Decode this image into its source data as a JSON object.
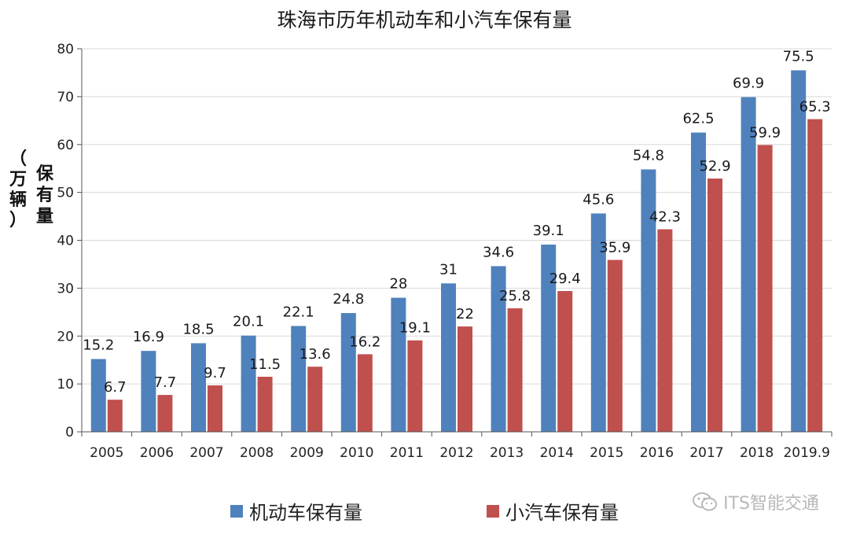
{
  "chart_data": {
    "type": "bar",
    "title": "珠海市历年机动车和小汽车保有量",
    "ylabel": "保有量",
    "yunit": "（万辆）",
    "categories": [
      "2005",
      "2006",
      "2007",
      "2008",
      "2009",
      "2010",
      "2011",
      "2012",
      "2013",
      "2014",
      "2015",
      "2016",
      "2017",
      "2018",
      "2019.9"
    ],
    "series": [
      {
        "name": "机动车保有量",
        "color": "#4f81bd",
        "values": [
          15.2,
          16.9,
          18.5,
          20.1,
          22.1,
          24.8,
          28,
          31,
          34.6,
          39.1,
          45.6,
          54.8,
          62.5,
          69.9,
          75.5
        ]
      },
      {
        "name": "小汽车保有量",
        "color": "#c0504d",
        "values": [
          6.7,
          7.7,
          9.7,
          11.5,
          13.6,
          16.2,
          19.1,
          22,
          25.8,
          29.4,
          35.9,
          42.3,
          52.9,
          59.9,
          65.3
        ]
      }
    ],
    "ylim": [
      0,
      80
    ],
    "yticks": [
      0,
      10,
      20,
      30,
      40,
      50,
      60,
      70,
      80
    ],
    "grid": true,
    "legend_position": "bottom"
  },
  "watermark": {
    "text": "ITS智能交通",
    "icon": "wechat-icon"
  }
}
